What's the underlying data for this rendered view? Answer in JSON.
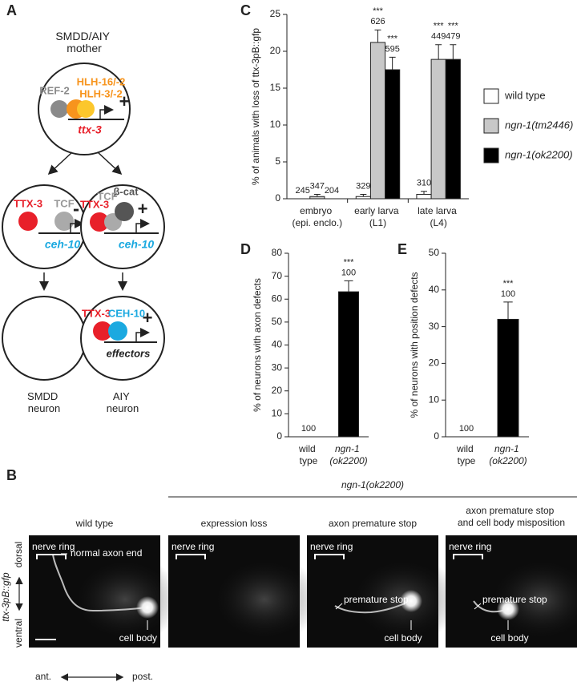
{
  "panel_a": {
    "label": "A",
    "mother": "SMDD/AIY mother",
    "mother_factors": [
      "REF-2",
      "HLH-16/-2",
      "HLH-3/-2"
    ],
    "mother_sign": "+",
    "mother_gene": "ttx-3",
    "smdd_precursor": {
      "factors": [
        "TTX-3",
        "TCF"
      ],
      "sign": "-",
      "gene": "ceh-10"
    },
    "aiy_precursor": {
      "factors": [
        "β-cat",
        "TTX-3",
        "TCF"
      ],
      "sign": "+",
      "gene": "ceh-10"
    },
    "aiy_neuron": {
      "factors": [
        "TTX-3",
        "CEH-10"
      ],
      "sign": "+",
      "gene": "effectors"
    },
    "fates": [
      "SMDD neuron",
      "AIY neuron"
    ]
  },
  "panel_b": {
    "label": "B",
    "group_label": "ngn-1(ok2200)",
    "images": [
      {
        "title": "wild type",
        "annotations": [
          "nerve ring",
          "normal axon end",
          "cell body"
        ]
      },
      {
        "title": "expression loss",
        "annotations": [
          "nerve ring"
        ]
      },
      {
        "title": "axon premature stop",
        "annotations": [
          "nerve ring",
          "premature stop",
          "cell body"
        ]
      },
      {
        "title": "axon premature stop and cell body misposition",
        "annotations": [
          "nerve ring",
          "premature stop",
          "cell body"
        ]
      }
    ],
    "axes": {
      "dorsal": "dorsal",
      "ventral": "ventral",
      "marker": "ttx-3pB::gfp",
      "anterior": "ant.",
      "posterior": "post."
    }
  },
  "chart_data": [
    {
      "type": "bar",
      "panel_label": "C",
      "y_label": "% of animals with loss of ttx-3pB::gfp",
      "categories": [
        "embryo (epi. enclo.)",
        "early larva (L1)",
        "late larva (L4)"
      ],
      "series": [
        {
          "name": "wild type",
          "color": "#ffffff",
          "values": [
            0,
            0.3,
            0.6
          ],
          "errors": [
            0,
            0.3,
            0.4
          ],
          "n": [
            245,
            329,
            310
          ],
          "significance": [
            null,
            null,
            null
          ]
        },
        {
          "name": "ngn-1(tm2446)",
          "color": "#c8c8c8",
          "values": [
            0.3,
            21.2,
            18.9
          ],
          "errors": [
            0.3,
            1.7,
            2.0
          ],
          "n": [
            347,
            626,
            449
          ],
          "significance": [
            null,
            "***",
            "***"
          ]
        },
        {
          "name": "ngn-1(ok2200)",
          "color": "#000000",
          "values": [
            0,
            17.5,
            18.9
          ],
          "errors": [
            0,
            1.7,
            2.0
          ],
          "n": [
            204,
            595,
            479
          ],
          "significance": [
            null,
            "***",
            "***"
          ]
        }
      ],
      "ylim": [
        0,
        25
      ],
      "yticks": [
        0,
        5,
        10,
        15,
        20,
        25
      ],
      "legend": "right"
    },
    {
      "type": "bar",
      "panel_label": "D",
      "y_label": "% of neurons with axon defects",
      "categories": [
        "wild type",
        "ngn-1 (ok2200)"
      ],
      "values": [
        0,
        63.2
      ],
      "errors": [
        0,
        4.8
      ],
      "n": [
        100,
        100
      ],
      "significance": [
        null,
        "***"
      ],
      "color": "#000000",
      "ylim": [
        0,
        80
      ],
      "yticks": [
        0,
        10,
        20,
        30,
        40,
        50,
        60,
        70,
        80
      ]
    },
    {
      "type": "bar",
      "panel_label": "E",
      "y_label": "% of neurons with position defects",
      "categories": [
        "wild type",
        "ngn-1 (ok2200)"
      ],
      "values": [
        0,
        32
      ],
      "errors": [
        0,
        4.7
      ],
      "n": [
        100,
        100
      ],
      "significance": [
        null,
        "***"
      ],
      "color": "#000000",
      "ylim": [
        0,
        50
      ],
      "yticks": [
        0,
        10,
        20,
        30,
        40,
        50
      ]
    }
  ]
}
